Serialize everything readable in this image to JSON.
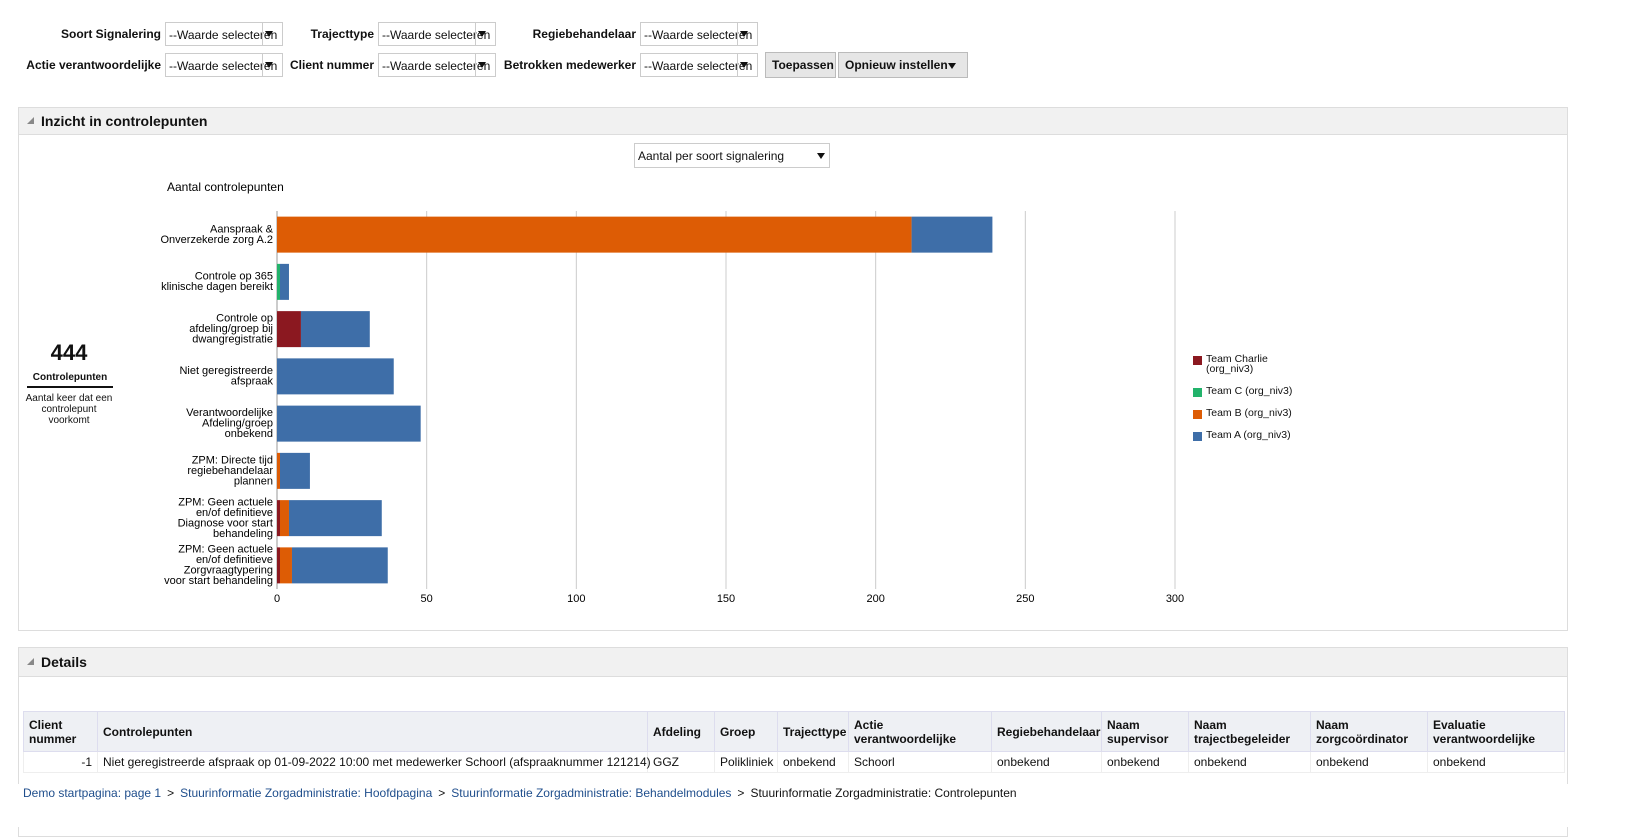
{
  "filters": [
    {
      "label": "Soort Signalering",
      "value": "--Waarde selecteren"
    },
    {
      "label": "Trajecttype",
      "value": "--Waarde selecteren"
    },
    {
      "label": "Regiebehandelaar",
      "value": "--Waarde selecteren"
    },
    {
      "label": "Actie verantwoordelijke",
      "value": "--Waarde selecteren"
    },
    {
      "label": "Client nummer",
      "value": "--Waarde selecteren"
    },
    {
      "label": "Betrokken medewerker",
      "value": "--Waarde selecteren"
    }
  ],
  "buttons": [
    "Toepassen",
    "Opnieuw instellen"
  ],
  "panel": {
    "title": "Inzicht in controlepunten",
    "select": "Aantal per soort signalering"
  },
  "kpi": {
    "value": 444,
    "label": "Controlepunten",
    "description": "Aantal keer dat een controlepunt voorkomt"
  },
  "chart_data": {
    "type": "bar",
    "orientation": "horizontal",
    "stacked": true,
    "title": "Aantal controlepunten",
    "categories": [
      [
        "Aanspraak &",
        "Onverzekerde zorg A.2"
      ],
      [
        "Controle op 365",
        "klinische dagen bereikt"
      ],
      [
        "Controle op",
        "afdeling/groep bij",
        "dwangregistratie"
      ],
      [
        "Niet geregistreerde",
        "afspraak"
      ],
      [
        "Verantwoordelijke",
        "Afdeling/groep",
        "onbekend"
      ],
      [
        "ZPM: Directe tijd",
        "regiebehandelaar",
        "plannen"
      ],
      [
        "ZPM: Geen actuele",
        "en/of definitieve",
        "Diagnose voor start",
        "behandeling"
      ],
      [
        "ZPM: Geen actuele",
        "en/of definitieve",
        "Zorgvraagtypering",
        "voor start behandeling"
      ]
    ],
    "series": [
      {
        "name": "Team Charlie (org_niv3)",
        "color": "#8b1820",
        "values": [
          0,
          0,
          8,
          0,
          0,
          0,
          1,
          1
        ]
      },
      {
        "name": "Team C (org_niv3)",
        "color": "#22b36b",
        "values": [
          0,
          1,
          0,
          0,
          0,
          0,
          0,
          0
        ]
      },
      {
        "name": "Team B (org_niv3)",
        "color": "#dd5c05",
        "values": [
          212,
          0,
          0,
          0,
          0,
          1,
          3,
          4
        ]
      },
      {
        "name": "Team A (org_niv3)",
        "color": "#3e6ea8",
        "values": [
          27,
          3,
          23,
          39,
          48,
          10,
          31,
          32
        ]
      }
    ],
    "xlim": [
      0,
      300
    ],
    "xticks": [
      0,
      50,
      100,
      150,
      200,
      250,
      300
    ],
    "grid": true,
    "legend": "right"
  },
  "details": {
    "title": "Details",
    "columns": [
      "Client nummer",
      "Controlepunten",
      "Afdeling",
      "Groep",
      "Trajecttype",
      "Actie verantwoordelijke",
      "Regiebehandelaar",
      "Naam supervisor",
      "Naam trajectbegeleider",
      "Naam zorgcoördinator",
      "Evaluatie verantwoordelijke"
    ],
    "rows": [
      [
        "-1",
        "Niet geregistreerde afspraak op 01-09-2022 10:00 met medewerker Schoorl (afspraaknummer 121214)",
        "GGZ",
        "Polikliniek",
        "onbekend",
        "Schoorl",
        "onbekend",
        "onbekend",
        "onbekend",
        "onbekend",
        "onbekend"
      ]
    ]
  },
  "breadcrumb": {
    "links": [
      "Demo startpagina: page 1",
      "Stuurinformatie Zorgadministratie: Hoofdpagina",
      "Stuurinformatie Zorgadministratie: Behandelmodules"
    ],
    "separator": ">",
    "current": "Stuurinformatie Zorgadministratie: Controlepunten"
  }
}
